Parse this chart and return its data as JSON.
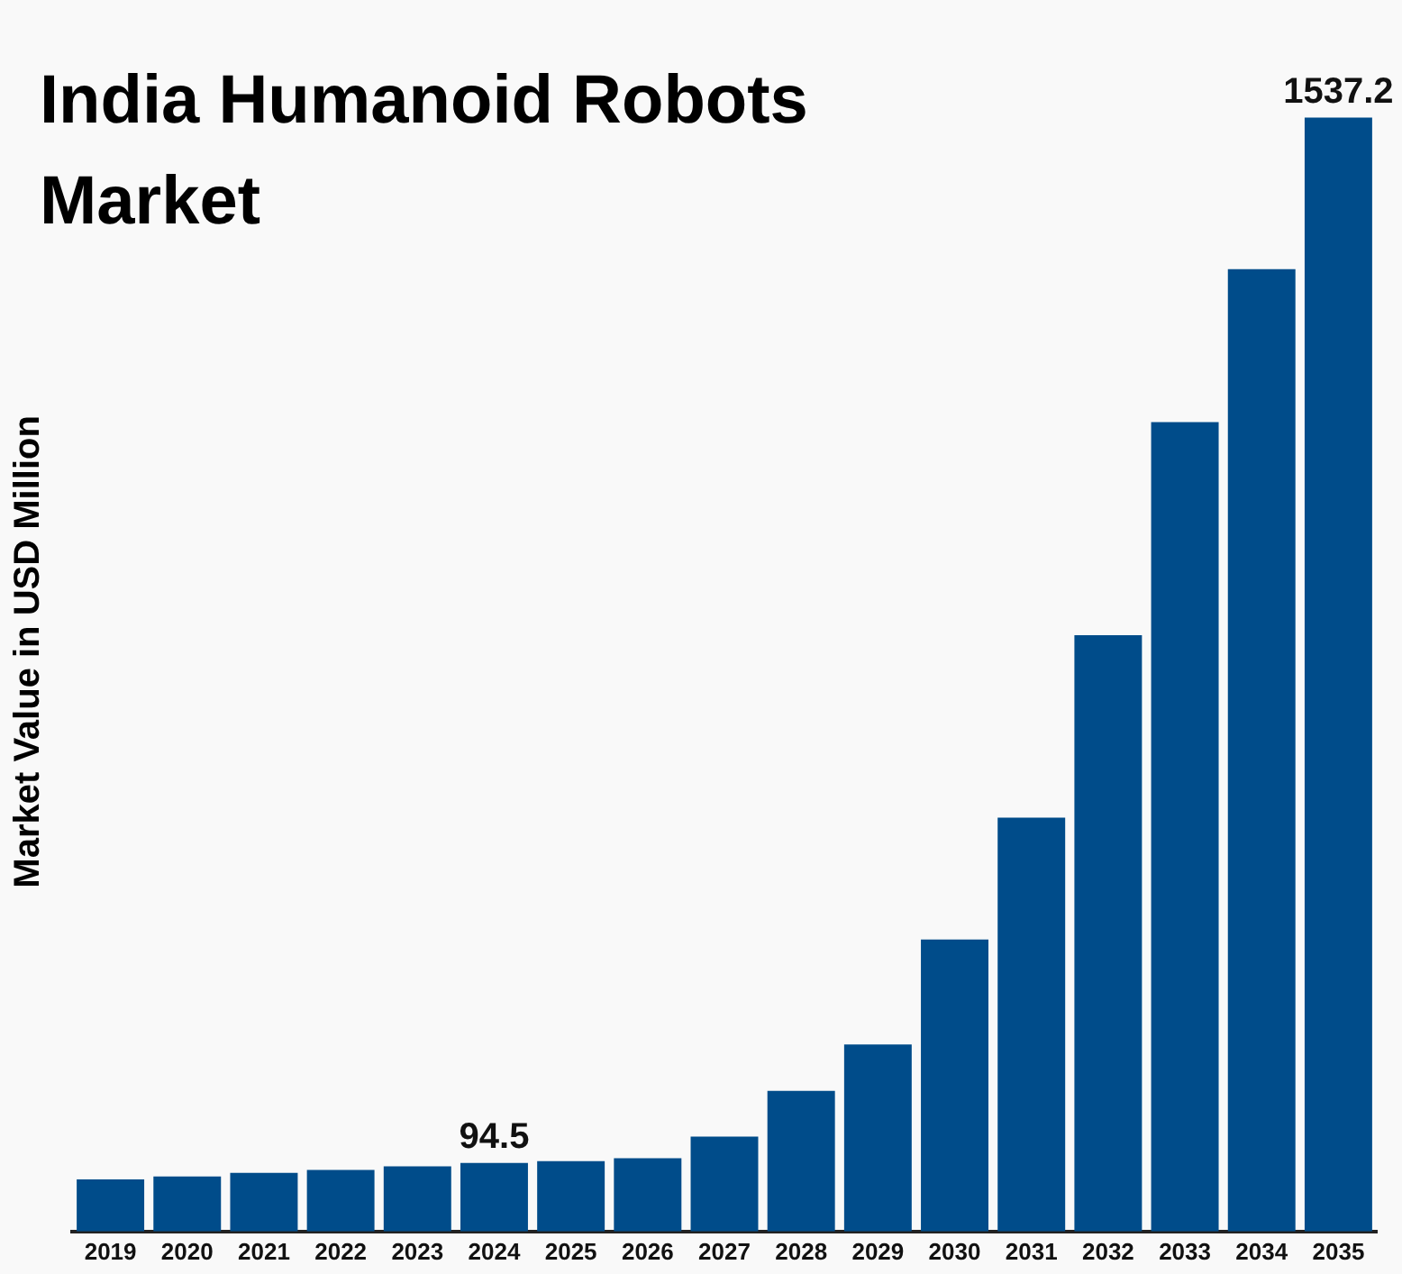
{
  "chart_data": {
    "type": "bar",
    "title": "India Humanoid Robots Market",
    "ylabel": "Market Value in USD Million",
    "categories": [
      "2019",
      "2020",
      "2021",
      "2022",
      "2023",
      "2024",
      "2025",
      "2026",
      "2027",
      "2028",
      "2029",
      "2030",
      "2031",
      "2032",
      "2033",
      "2034",
      "2035"
    ],
    "values": [
      72,
      76,
      81,
      85,
      90,
      94.5,
      97,
      101,
      131,
      194,
      258,
      403,
      571,
      823,
      1117,
      1328,
      1537.2
    ],
    "value_labels": [
      null,
      null,
      null,
      null,
      null,
      "94.5",
      null,
      null,
      null,
      null,
      null,
      null,
      null,
      null,
      null,
      null,
      "1537.2"
    ],
    "color": "#004c8a",
    "grid": false,
    "legend": false
  }
}
